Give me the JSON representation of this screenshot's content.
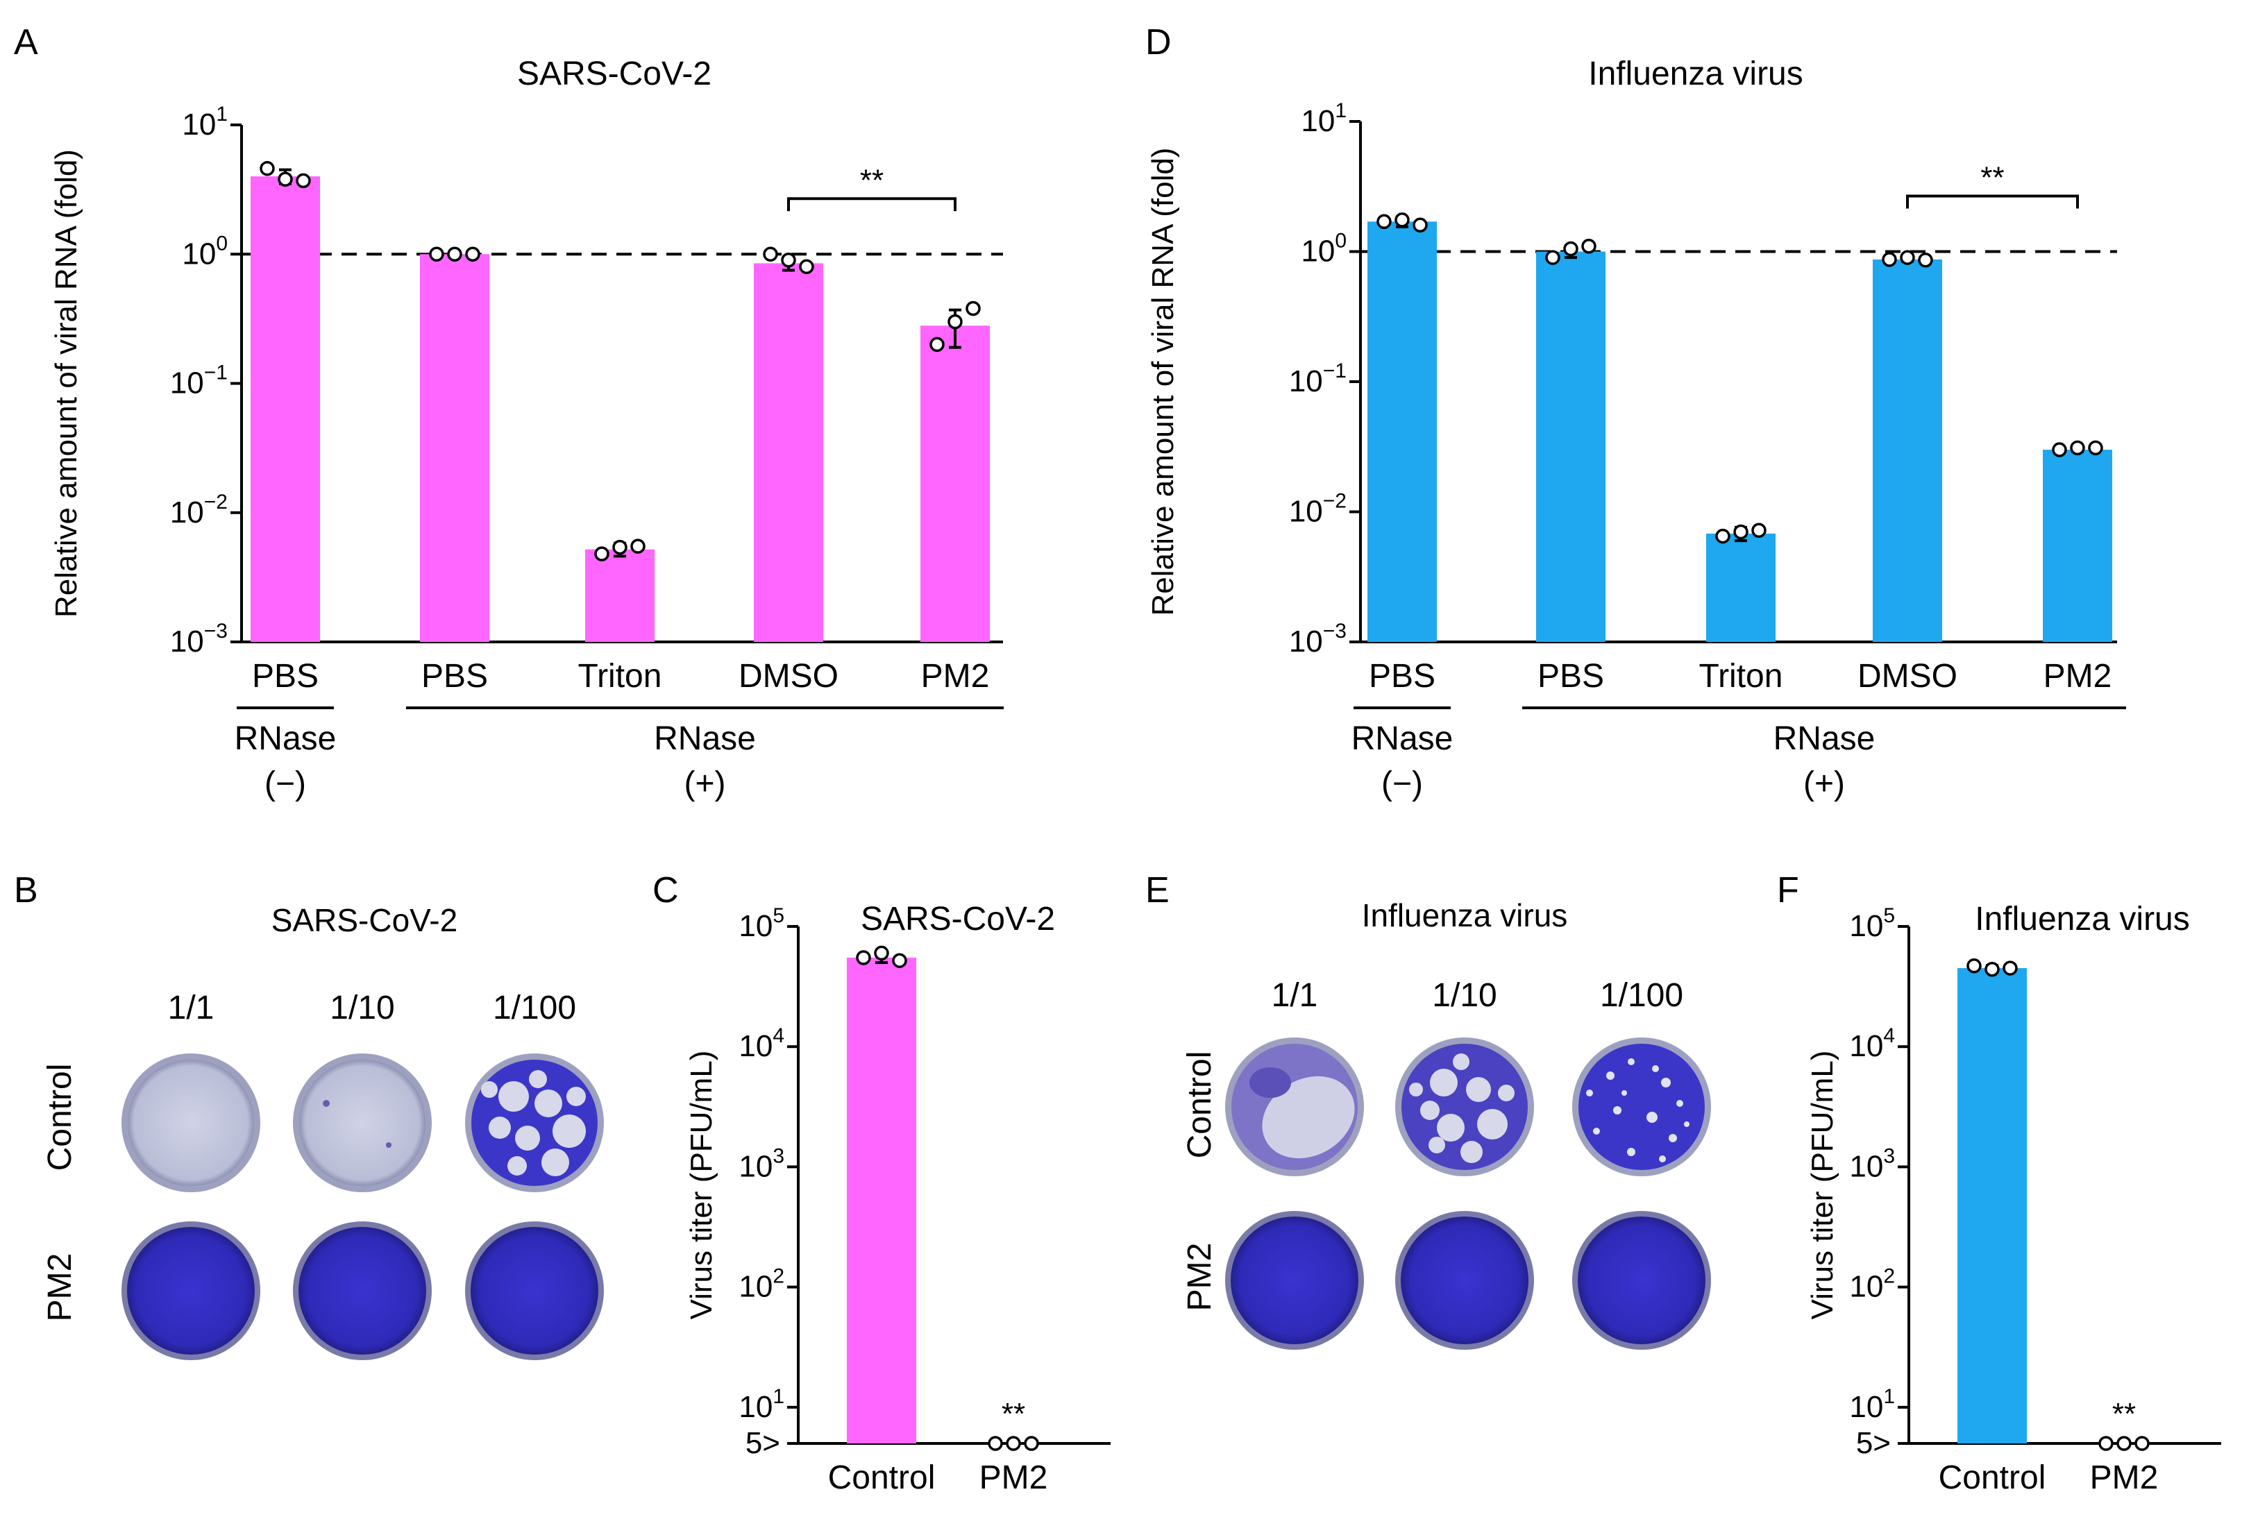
{
  "panels": {
    "A": {
      "letter": "A",
      "chart_data": {
        "type": "bar",
        "title": "SARS-CoV-2",
        "ylabel": "Relative amount of viral RNA (fold)",
        "yscale": "log",
        "ylim": [
          0.001,
          10
        ],
        "yticks": [
          {
            "v": 10,
            "b": "10",
            "e": "1"
          },
          {
            "v": 1,
            "b": "10",
            "e": "0"
          },
          {
            "v": 0.1,
            "b": "10",
            "e": "−1"
          },
          {
            "v": 0.01,
            "b": "10",
            "e": "−2"
          },
          {
            "v": 0.001,
            "b": "10",
            "e": "−3"
          }
        ],
        "categories": [
          "PBS",
          "PBS",
          "Triton",
          "DMSO",
          "PM2"
        ],
        "values": [
          4.0,
          1.0,
          0.0052,
          0.85,
          0.28
        ],
        "errors": [
          0.5,
          0.02,
          0.0006,
          0.1,
          0.09
        ],
        "points": [
          [
            4.6,
            3.8,
            3.7
          ],
          [
            1.0,
            1.0,
            1.0
          ],
          [
            0.0048,
            0.0054,
            0.0055
          ],
          [
            1.0,
            0.9,
            0.8
          ],
          [
            0.2,
            0.3,
            0.38
          ]
        ],
        "reference_line": 1,
        "significance": {
          "from": 3,
          "to": 4,
          "label": "**"
        },
        "groups": [
          {
            "name": "RNase",
            "sub": "(−)",
            "from": 0,
            "to": 0
          },
          {
            "name": "RNase",
            "sub": "(+)",
            "from": 1,
            "to": 4
          }
        ],
        "color": "#ff66ff"
      }
    },
    "D": {
      "letter": "D",
      "chart_data": {
        "type": "bar",
        "title": "Influenza virus",
        "ylabel": "Relative amount of viral RNA (fold)",
        "yscale": "log",
        "ylim": [
          0.001,
          10
        ],
        "yticks": [
          {
            "v": 10,
            "b": "10",
            "e": "1"
          },
          {
            "v": 1,
            "b": "10",
            "e": "0"
          },
          {
            "v": 0.1,
            "b": "10",
            "e": "−1"
          },
          {
            "v": 0.01,
            "b": "10",
            "e": "−2"
          },
          {
            "v": 0.001,
            "b": "10",
            "e": "−3"
          }
        ],
        "categories": [
          "PBS",
          "PBS",
          "Triton",
          "DMSO",
          "PM2"
        ],
        "values": [
          1.7,
          1.0,
          0.0068,
          0.87,
          0.03
        ],
        "errors": [
          0.15,
          0.1,
          0.0008,
          0.03,
          0.001
        ],
        "points": [
          [
            1.7,
            1.75,
            1.6
          ],
          [
            0.9,
            1.05,
            1.1
          ],
          [
            0.0065,
            0.007,
            0.0072
          ],
          [
            0.87,
            0.9,
            0.86
          ],
          [
            0.03,
            0.031,
            0.031
          ]
        ],
        "reference_line": 1,
        "significance": {
          "from": 3,
          "to": 4,
          "label": "**"
        },
        "groups": [
          {
            "name": "RNase",
            "sub": "(−)",
            "from": 0,
            "to": 0
          },
          {
            "name": "RNase",
            "sub": "(+)",
            "from": 1,
            "to": 4
          }
        ],
        "color": "#1fa7ef"
      }
    },
    "B": {
      "letter": "B",
      "title": "SARS-CoV-2",
      "dilutions": [
        "1/1",
        "1/10",
        "1/100"
      ],
      "rows": [
        "Control",
        "PM2"
      ]
    },
    "E": {
      "letter": "E",
      "title": "Influenza virus",
      "dilutions": [
        "1/1",
        "1/10",
        "1/100"
      ],
      "rows": [
        "Control",
        "PM2"
      ]
    },
    "C": {
      "letter": "C",
      "chart_data": {
        "type": "bar",
        "title": "SARS-CoV-2",
        "ylabel": "Virus titer (PFU/mL)",
        "yscale": "log",
        "ylim": [
          5,
          100000
        ],
        "yticks": [
          {
            "v": 100000,
            "b": "10",
            "e": "5"
          },
          {
            "v": 10000,
            "b": "10",
            "e": "4"
          },
          {
            "v": 1000,
            "b": "10",
            "e": "3"
          },
          {
            "v": 100,
            "b": "10",
            "e": "2"
          },
          {
            "v": 10,
            "b": "10",
            "e": "1"
          },
          {
            "v": 5,
            "b": "5>",
            "e": ""
          }
        ],
        "categories": [
          "Control",
          "PM2"
        ],
        "values": [
          55000,
          5
        ],
        "errors": [
          5000,
          0
        ],
        "points": [
          [
            55000,
            60000,
            52000
          ],
          [
            5,
            5,
            5
          ]
        ],
        "significance_labels": [
          "",
          "**"
        ],
        "color": "#ff66ff"
      }
    },
    "F": {
      "letter": "F",
      "chart_data": {
        "type": "bar",
        "title": "Influenza virus",
        "ylabel": "Virus titer (PFU/mL)",
        "yscale": "log",
        "ylim": [
          5,
          100000
        ],
        "yticks": [
          {
            "v": 100000,
            "b": "10",
            "e": "5"
          },
          {
            "v": 10000,
            "b": "10",
            "e": "4"
          },
          {
            "v": 1000,
            "b": "10",
            "e": "3"
          },
          {
            "v": 100,
            "b": "10",
            "e": "2"
          },
          {
            "v": 10,
            "b": "10",
            "e": "1"
          },
          {
            "v": 5,
            "b": "5>",
            "e": ""
          }
        ],
        "categories": [
          "Control",
          "PM2"
        ],
        "values": [
          45000,
          5
        ],
        "errors": [
          2500,
          0
        ],
        "points": [
          [
            47000,
            44000,
            45000
          ],
          [
            5,
            5,
            5
          ]
        ],
        "significance_labels": [
          "",
          "**"
        ],
        "color": "#1fa7ef"
      }
    }
  },
  "colors": {
    "plaque_blue": "#3b36c8",
    "plaque_light": "#c6c9df"
  }
}
